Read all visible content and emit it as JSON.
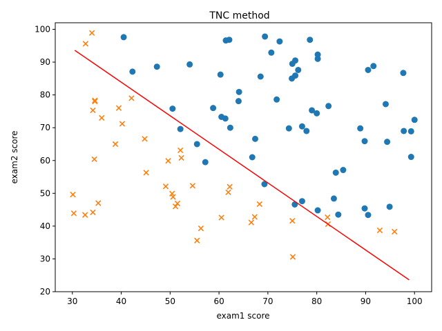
{
  "chart_data": {
    "type": "scatter",
    "title": "TNC method",
    "xlabel": "exam1 score",
    "ylabel": "exam2 score",
    "xlim": [
      26.5,
      103.5
    ],
    "ylim": [
      20,
      102
    ],
    "xticks": [
      30,
      40,
      50,
      60,
      70,
      80,
      90,
      100
    ],
    "yticks": [
      20,
      30,
      40,
      50,
      60,
      70,
      80,
      90,
      100
    ],
    "grid": false,
    "legend": "none",
    "series": [
      {
        "marker": "circle",
        "color": "#1f77b4",
        "points": [
          [
            40.5,
            97.6
          ],
          [
            61.4,
            96.6
          ],
          [
            62.1,
            96.8
          ],
          [
            69.4,
            97.8
          ],
          [
            72.4,
            96.3
          ],
          [
            78.6,
            96.8
          ],
          [
            70.7,
            92.9
          ],
          [
            80.2,
            92.3
          ],
          [
            80.2,
            91.0
          ],
          [
            75.6,
            90.5
          ],
          [
            75.0,
            89.5
          ],
          [
            91.6,
            88.8
          ],
          [
            47.3,
            88.6
          ],
          [
            54.0,
            89.3
          ],
          [
            42.3,
            87.1
          ],
          [
            76.2,
            87.6
          ],
          [
            90.5,
            87.6
          ],
          [
            97.7,
            86.7
          ],
          [
            60.3,
            86.2
          ],
          [
            68.5,
            85.6
          ],
          [
            75.6,
            85.9
          ],
          [
            74.9,
            85.0
          ],
          [
            64.1,
            80.9
          ],
          [
            64.0,
            78.1
          ],
          [
            71.8,
            78.6
          ],
          [
            94.1,
            77.2
          ],
          [
            82.4,
            76.6
          ],
          [
            50.5,
            75.8
          ],
          [
            58.8,
            76.0
          ],
          [
            79.0,
            75.3
          ],
          [
            80.0,
            74.4
          ],
          [
            60.5,
            73.3
          ],
          [
            61.3,
            72.8
          ],
          [
            100.0,
            72.4
          ],
          [
            77.0,
            70.4
          ],
          [
            52.1,
            69.6
          ],
          [
            62.3,
            70.0
          ],
          [
            74.3,
            69.8
          ],
          [
            77.9,
            69.0
          ],
          [
            88.9,
            69.8
          ],
          [
            97.8,
            69.0
          ],
          [
            99.3,
            68.9
          ],
          [
            67.4,
            66.6
          ],
          [
            89.8,
            65.9
          ],
          [
            94.4,
            65.7
          ],
          [
            55.5,
            65.0
          ],
          [
            66.8,
            61.0
          ],
          [
            99.3,
            61.1
          ],
          [
            57.2,
            59.5
          ],
          [
            85.4,
            57.1
          ],
          [
            83.9,
            56.3
          ],
          [
            69.3,
            52.8
          ],
          [
            83.5,
            48.4
          ],
          [
            77.0,
            47.6
          ],
          [
            75.5,
            46.6
          ],
          [
            94.9,
            45.9
          ],
          [
            89.8,
            45.4
          ],
          [
            80.2,
            44.8
          ],
          [
            84.4,
            43.5
          ],
          [
            90.5,
            43.4
          ]
        ]
      },
      {
        "marker": "x",
        "color": "#ff7f0e",
        "points": [
          [
            34.0,
            98.9
          ],
          [
            32.7,
            95.6
          ],
          [
            34.6,
            78.0
          ],
          [
            34.6,
            78.3
          ],
          [
            42.1,
            79.0
          ],
          [
            34.2,
            75.3
          ],
          [
            39.5,
            76.0
          ],
          [
            36.0,
            73.0
          ],
          [
            40.2,
            71.2
          ],
          [
            44.8,
            66.6
          ],
          [
            38.8,
            65.0
          ],
          [
            52.1,
            63.1
          ],
          [
            34.5,
            60.4
          ],
          [
            49.6,
            59.9
          ],
          [
            52.3,
            60.8
          ],
          [
            45.1,
            56.3
          ],
          [
            49.1,
            52.1
          ],
          [
            54.6,
            52.3
          ],
          [
            62.2,
            52.0
          ],
          [
            61.9,
            50.3
          ],
          [
            30.1,
            49.6
          ],
          [
            50.4,
            49.9
          ],
          [
            50.6,
            48.9
          ],
          [
            51.5,
            46.9
          ],
          [
            35.3,
            47.0
          ],
          [
            51.1,
            46.0
          ],
          [
            68.3,
            46.7
          ],
          [
            34.2,
            44.2
          ],
          [
            30.3,
            43.9
          ],
          [
            32.6,
            43.4
          ],
          [
            82.2,
            42.7
          ],
          [
            67.3,
            42.8
          ],
          [
            60.5,
            42.6
          ],
          [
            75.0,
            41.6
          ],
          [
            66.6,
            41.1
          ],
          [
            82.3,
            40.6
          ],
          [
            56.3,
            39.3
          ],
          [
            92.9,
            38.7
          ],
          [
            95.9,
            38.3
          ],
          [
            55.5,
            35.6
          ],
          [
            75.1,
            30.6
          ]
        ]
      }
    ],
    "line": {
      "color": "#ff0000",
      "points": [
        [
          30.5,
          93.6
        ],
        [
          98.9,
          23.6
        ]
      ]
    }
  }
}
